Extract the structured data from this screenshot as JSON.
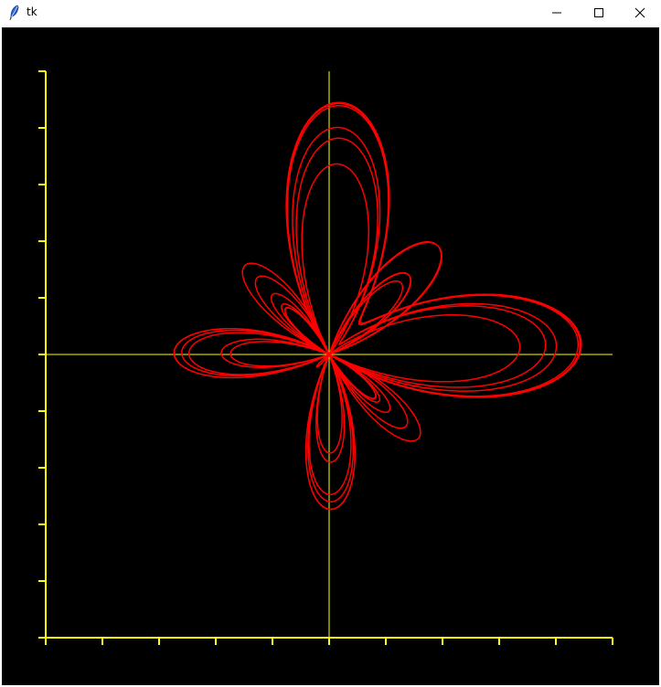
{
  "window": {
    "title": "tk",
    "icon": "feather-icon",
    "controls": [
      "minimize-icon",
      "maximize-icon",
      "close-icon"
    ]
  },
  "canvas": {
    "background": "#000000",
    "axis_color": "#ffff00",
    "crosshair_color": "#ffff00",
    "curve_color": "#ff0000",
    "curve": "butterfly curve",
    "x_ticks": 10,
    "y_ticks": 10
  }
}
